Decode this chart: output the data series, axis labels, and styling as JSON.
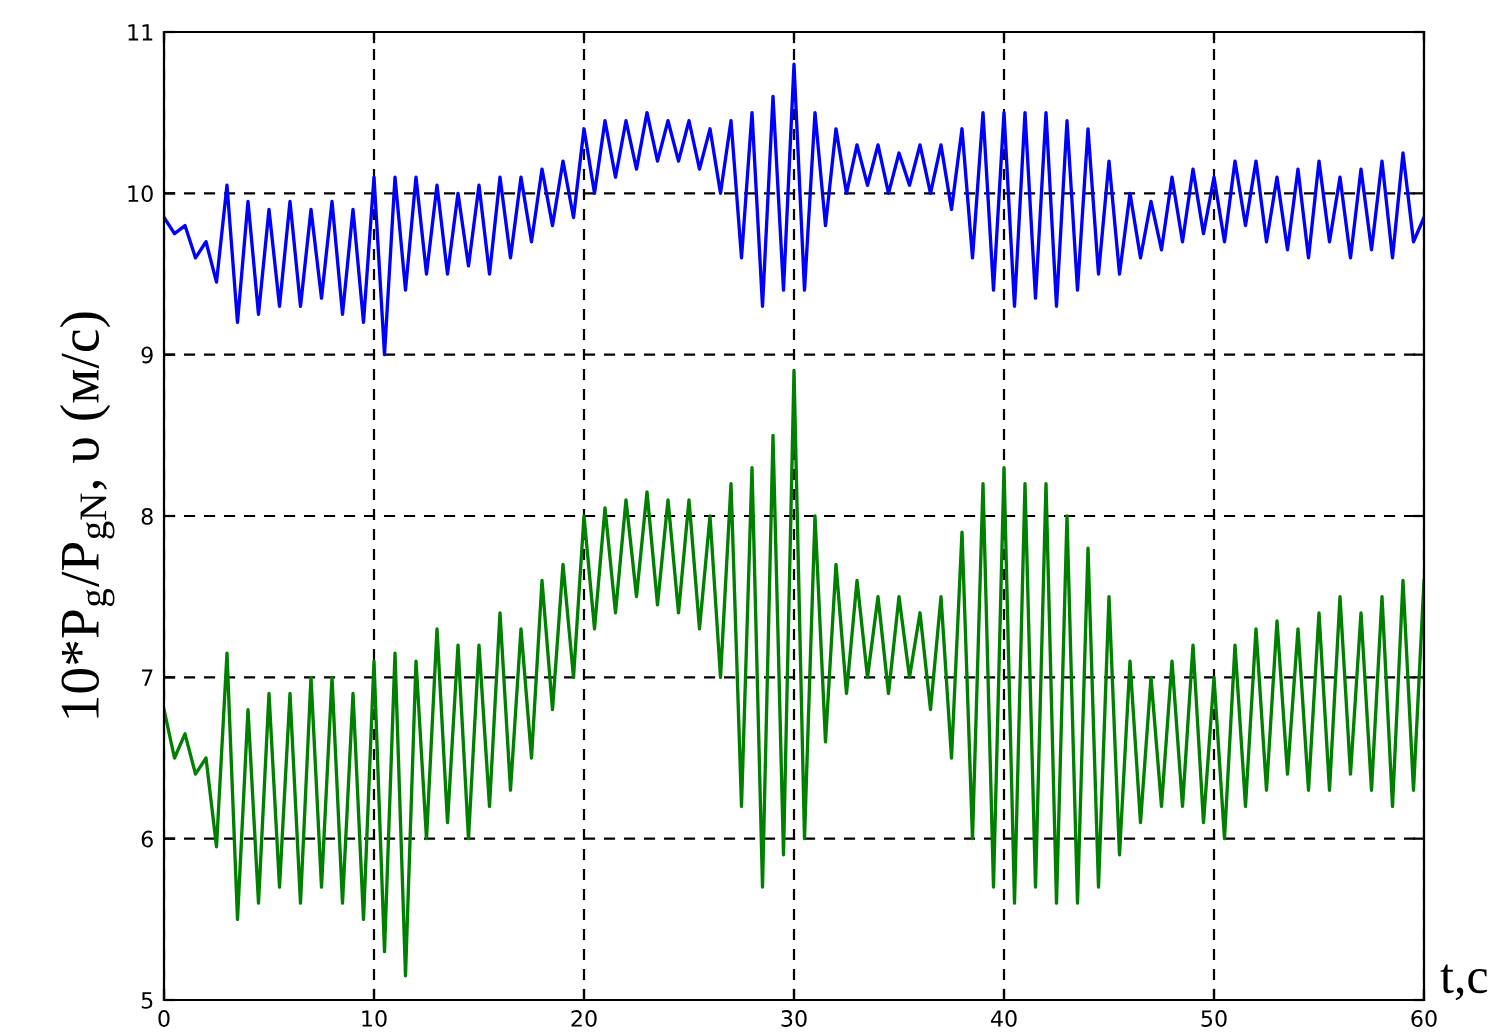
{
  "chart_data": {
    "type": "line",
    "xlabel": "t,c",
    "ylabel": "10*P$_{g}$/P$_{gN}$, υ (м/с)",
    "x": [
      0,
      0.5,
      1,
      1.5,
      2,
      2.5,
      3,
      3.5,
      4,
      4.5,
      5,
      5.5,
      6,
      6.5,
      7,
      7.5,
      8,
      8.5,
      9,
      9.5,
      10,
      10.5,
      11,
      11.5,
      12,
      12.5,
      13,
      13.5,
      14,
      14.5,
      15,
      15.5,
      16,
      16.5,
      17,
      17.5,
      18,
      18.5,
      19,
      19.5,
      20,
      20.5,
      21,
      21.5,
      22,
      22.5,
      23,
      23.5,
      24,
      24.5,
      25,
      25.5,
      26,
      26.5,
      27,
      27.5,
      28,
      28.5,
      29,
      29.5,
      30,
      30.5,
      31,
      31.5,
      32,
      32.5,
      33,
      33.5,
      34,
      34.5,
      35,
      35.5,
      36,
      36.5,
      37,
      37.5,
      38,
      38.5,
      39,
      39.5,
      40,
      40.5,
      41,
      41.5,
      42,
      42.5,
      43,
      43.5,
      44,
      44.5,
      45,
      45.5,
      46,
      46.5,
      47,
      47.5,
      48,
      48.5,
      49,
      49.5,
      50,
      50.5,
      51,
      51.5,
      52,
      52.5,
      53,
      53.5,
      54,
      54.5,
      55,
      55.5,
      56,
      56.5,
      57,
      57.5,
      58,
      58.5,
      59,
      59.5,
      60
    ],
    "series": [
      {
        "color": "#0000ff",
        "values": [
          9.85,
          9.75,
          9.8,
          9.6,
          9.7,
          9.45,
          10.05,
          9.2,
          9.95,
          9.25,
          9.9,
          9.3,
          9.95,
          9.3,
          9.9,
          9.35,
          9.95,
          9.25,
          9.9,
          9.2,
          10.1,
          9.0,
          10.1,
          9.4,
          10.1,
          9.5,
          10.05,
          9.5,
          10.0,
          9.55,
          10.05,
          9.5,
          10.1,
          9.6,
          10.1,
          9.7,
          10.15,
          9.8,
          10.2,
          9.85,
          10.4,
          10.0,
          10.45,
          10.1,
          10.45,
          10.15,
          10.5,
          10.2,
          10.45,
          10.2,
          10.45,
          10.15,
          10.4,
          10.0,
          10.45,
          9.6,
          10.5,
          9.3,
          10.6,
          9.4,
          10.8,
          9.4,
          10.5,
          9.8,
          10.4,
          10.0,
          10.3,
          10.05,
          10.3,
          10.0,
          10.25,
          10.05,
          10.3,
          10.0,
          10.3,
          9.9,
          10.4,
          9.6,
          10.5,
          9.4,
          10.5,
          9.3,
          10.5,
          9.35,
          10.5,
          9.3,
          10.45,
          9.4,
          10.4,
          9.5,
          10.2,
          9.5,
          10.0,
          9.6,
          9.95,
          9.65,
          10.1,
          9.7,
          10.15,
          9.75,
          10.1,
          9.7,
          10.2,
          9.8,
          10.2,
          9.7,
          10.1,
          9.65,
          10.15,
          9.6,
          10.2,
          9.7,
          10.1,
          9.6,
          10.15,
          9.65,
          10.2,
          9.6,
          10.25,
          9.7,
          9.85
        ]
      },
      {
        "color": "#008000",
        "values": [
          6.8,
          6.5,
          6.65,
          6.4,
          6.5,
          5.95,
          7.15,
          5.5,
          6.8,
          5.6,
          6.9,
          5.7,
          6.9,
          5.6,
          7.0,
          5.7,
          7.0,
          5.6,
          6.9,
          5.5,
          7.1,
          5.3,
          7.15,
          5.15,
          7.1,
          6.0,
          7.3,
          6.1,
          7.2,
          6.0,
          7.2,
          6.2,
          7.4,
          6.3,
          7.3,
          6.5,
          7.6,
          6.8,
          7.7,
          7.0,
          8.0,
          7.3,
          8.05,
          7.4,
          8.1,
          7.5,
          8.15,
          7.45,
          8.1,
          7.4,
          8.1,
          7.3,
          8.0,
          7.0,
          8.2,
          6.2,
          8.3,
          5.7,
          8.5,
          5.9,
          8.9,
          6.0,
          8.0,
          6.6,
          7.7,
          6.9,
          7.6,
          7.0,
          7.5,
          6.9,
          7.5,
          7.0,
          7.4,
          6.8,
          7.5,
          6.5,
          7.9,
          6.0,
          8.2,
          5.7,
          8.3,
          5.6,
          8.2,
          5.7,
          8.2,
          5.6,
          8.0,
          5.6,
          7.8,
          5.7,
          7.5,
          5.9,
          7.1,
          6.1,
          7.0,
          6.2,
          7.1,
          6.2,
          7.2,
          6.1,
          7.0,
          6.0,
          7.2,
          6.2,
          7.3,
          6.3,
          7.35,
          6.4,
          7.3,
          6.3,
          7.4,
          6.3,
          7.5,
          6.4,
          7.4,
          6.3,
          7.5,
          6.2,
          7.6,
          6.3,
          7.6
        ]
      }
    ],
    "xlim": [
      0,
      60
    ],
    "xticks": [
      0,
      10,
      20,
      30,
      40,
      50,
      60
    ],
    "ylim": [
      5,
      11
    ],
    "yticks": [
      5,
      6,
      7,
      8,
      9,
      10,
      11
    ],
    "grid": true,
    "line_style": "solid",
    "marker": "none",
    "legend": false
  }
}
